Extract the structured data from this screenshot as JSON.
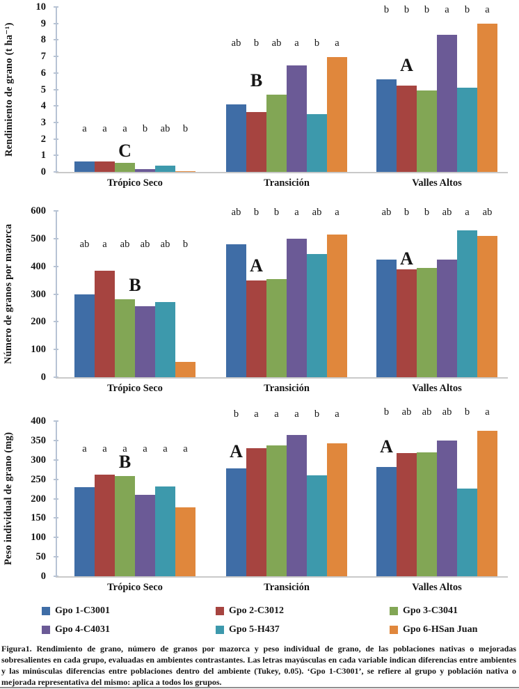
{
  "figure": {
    "caption": "Figura1. Rendimiento de grano, número de granos por mazorca y peso individual de grano, de las poblaciones nativas o mejoradas sobresalientes en cada grupo, evaluadas en ambientes contrastantes. Las letras mayúsculas en cada variable indican diferencias entre ambientes y las minúsculas diferencias entre poblaciones dentro del ambiente (Tukey, 0.05). ‘Gpo 1-C3001’, se refiere al grupo y población nativa o mejorada representativa del mismo: aplica a todos los grupos.",
    "legend": [
      {
        "label": "Gpo 1-C3001",
        "color": "#3F6DA6"
      },
      {
        "label": "Gpo 2-C3012",
        "color": "#A64440"
      },
      {
        "label": "Gpo 3-C3041",
        "color": "#82A655"
      },
      {
        "label": "Gpo 4-C4031",
        "color": "#6B5A96"
      },
      {
        "label": "Gpo 5-H437",
        "color": "#3D99AC"
      },
      {
        "label": "Gpo 6-HSan Juan",
        "color": "#E0873C"
      }
    ],
    "axis_color": "#b7c3d4",
    "baseline_color": "#c9c9c9"
  },
  "chart_data": [
    {
      "type": "bar",
      "ylabel": "Rendimiento de grano (t ha⁻¹)",
      "xlabel": "",
      "ylim": [
        0,
        10
      ],
      "ytick_step": 1,
      "grid": false,
      "legend_position": "bottom",
      "categories": [
        "Trópico Seco",
        "Transición",
        "Valles Altos"
      ],
      "series": [
        {
          "name": "Gpo 1-C3001",
          "values": [
            0.65,
            4.1,
            5.6
          ]
        },
        {
          "name": "Gpo 2-C3012",
          "values": [
            0.63,
            3.65,
            5.25
          ]
        },
        {
          "name": "Gpo 3-C3041",
          "values": [
            0.55,
            4.7,
            4.95
          ]
        },
        {
          "name": "Gpo 4-C4031",
          "values": [
            0.15,
            6.45,
            8.3
          ]
        },
        {
          "name": "Gpo 5-H437",
          "values": [
            0.38,
            3.5,
            5.1
          ]
        },
        {
          "name": "Gpo 6-HSan Juan",
          "values": [
            0.05,
            6.95,
            9.0
          ]
        }
      ],
      "sig_letters": [
        [
          "a",
          "a",
          "a",
          "b",
          "ab",
          "b"
        ],
        [
          "ab",
          "b",
          "ab",
          "a",
          "b",
          "a"
        ],
        [
          "b",
          "b",
          "b",
          "a",
          "b",
          "a"
        ]
      ],
      "sig_letters_y": [
        2.3,
        7.5,
        9.5
      ],
      "env_letters": [
        {
          "text": "C",
          "bar": 2,
          "y": 0.7
        },
        {
          "text": "B",
          "bar": 1,
          "y": 5.0
        },
        {
          "text": "A",
          "bar": 1,
          "y": 5.9
        }
      ]
    },
    {
      "type": "bar",
      "ylabel": "Número de granos por mazorca",
      "xlabel": "",
      "ylim": [
        0,
        600
      ],
      "ytick_step": 100,
      "grid": false,
      "legend_position": "bottom",
      "categories": [
        "Trópico Seco",
        "Transición",
        "Valles Altos"
      ],
      "series": [
        {
          "name": "Gpo 1-C3001",
          "values": [
            300,
            480,
            425
          ]
        },
        {
          "name": "Gpo 2-C3012",
          "values": [
            385,
            350,
            390
          ]
        },
        {
          "name": "Gpo 3-C3041",
          "values": [
            280,
            355,
            395
          ]
        },
        {
          "name": "Gpo 4-C4031",
          "values": [
            255,
            500,
            425
          ]
        },
        {
          "name": "Gpo 5-H437",
          "values": [
            272,
            445,
            530
          ]
        },
        {
          "name": "Gpo 6-HSan Juan",
          "values": [
            55,
            515,
            510
          ]
        }
      ],
      "sig_letters": [
        [
          "ab",
          "a",
          "ab",
          "ab",
          "ab",
          "b"
        ],
        [
          "ab",
          "b",
          "b",
          "a",
          "ab",
          "a"
        ],
        [
          "ab",
          "b",
          "b",
          "ab",
          "a",
          "ab"
        ]
      ],
      "sig_letters_y": [
        460,
        575,
        575
      ],
      "env_letters": [
        {
          "text": "B",
          "bar": 2.5,
          "y": 300
        },
        {
          "text": "A",
          "bar": 1,
          "y": 370
        },
        {
          "text": "A",
          "bar": 1,
          "y": 395
        }
      ]
    },
    {
      "type": "bar",
      "ylabel": "Peso individual de grano (mg)",
      "xlabel": "",
      "ylim": [
        0,
        400
      ],
      "ytick_step": 50,
      "grid": false,
      "legend_position": "bottom",
      "categories": [
        "Trópico Seco",
        "Transición",
        "Valles Altos"
      ],
      "series": [
        {
          "name": "Gpo 1-C3001",
          "values": [
            230,
            278,
            282
          ]
        },
        {
          "name": "Gpo 2-C3012",
          "values": [
            262,
            330,
            318
          ]
        },
        {
          "name": "Gpo 3-C3041",
          "values": [
            258,
            338,
            320
          ]
        },
        {
          "name": "Gpo 4-C4031",
          "values": [
            210,
            365,
            350
          ]
        },
        {
          "name": "Gpo 5-H437",
          "values": [
            232,
            260,
            226
          ]
        },
        {
          "name": "Gpo 6-HSan Juan",
          "values": [
            178,
            343,
            375
          ]
        }
      ],
      "sig_letters": [
        [
          "a",
          "a",
          "a",
          "a",
          "a",
          "a"
        ],
        [
          "b",
          "a",
          "a",
          "a",
          "b",
          "a"
        ],
        [
          "b",
          "ab",
          "ab",
          "ab",
          "b",
          "a"
        ]
      ],
      "sig_letters_y": [
        315,
        405,
        410
      ],
      "env_letters": [
        {
          "text": "B",
          "bar": 2,
          "y": 270
        },
        {
          "text": "A",
          "bar": 0,
          "y": 298
        },
        {
          "text": "A",
          "bar": 0,
          "y": 310
        }
      ]
    }
  ]
}
